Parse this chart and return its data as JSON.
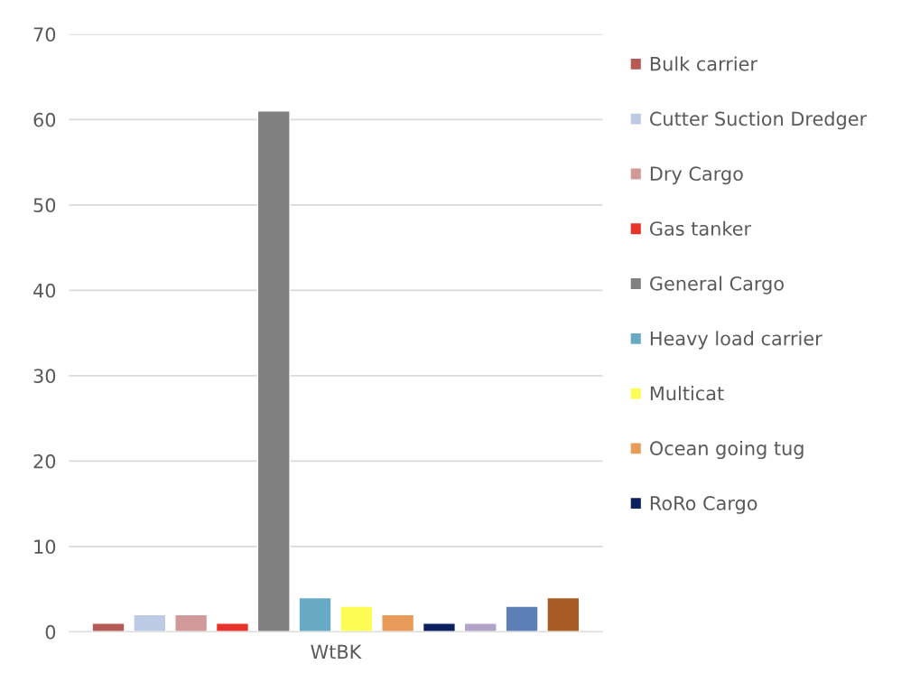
{
  "chart_data": {
    "type": "bar",
    "categories": [
      "WtBK"
    ],
    "series": [
      {
        "name": "Bulk carrier",
        "color": "#b55a54",
        "values": [
          1
        ]
      },
      {
        "name": "Cutter Suction Dredger",
        "color": "#bccbe3",
        "values": [
          2
        ]
      },
      {
        "name": "Dry Cargo",
        "color": "#d19a98",
        "values": [
          2
        ]
      },
      {
        "name": "Gas tanker",
        "color": "#e8332a",
        "values": [
          1
        ]
      },
      {
        "name": "General Cargo",
        "color": "#808080",
        "values": [
          61
        ]
      },
      {
        "name": "Heavy load carrier",
        "color": "#68a9c4",
        "values": [
          4
        ]
      },
      {
        "name": "Multicat",
        "color": "#fcfc55",
        "values": [
          3
        ]
      },
      {
        "name": "Ocean going tug",
        "color": "#e89a58",
        "values": [
          2
        ]
      },
      {
        "name": "RoRo Cargo",
        "color": "#0c1f5e",
        "values": [
          1
        ]
      },
      {
        "color": "#b3a2c8",
        "values": [
          1
        ]
      },
      {
        "color": "#5d7fb8",
        "values": [
          3
        ]
      },
      {
        "color": "#a65c24",
        "values": [
          4
        ]
      }
    ],
    "ylim": [
      0,
      70
    ],
    "yticks": [
      0,
      10,
      20,
      30,
      40,
      50,
      60,
      70
    ],
    "grid": "y",
    "legend": "right"
  }
}
